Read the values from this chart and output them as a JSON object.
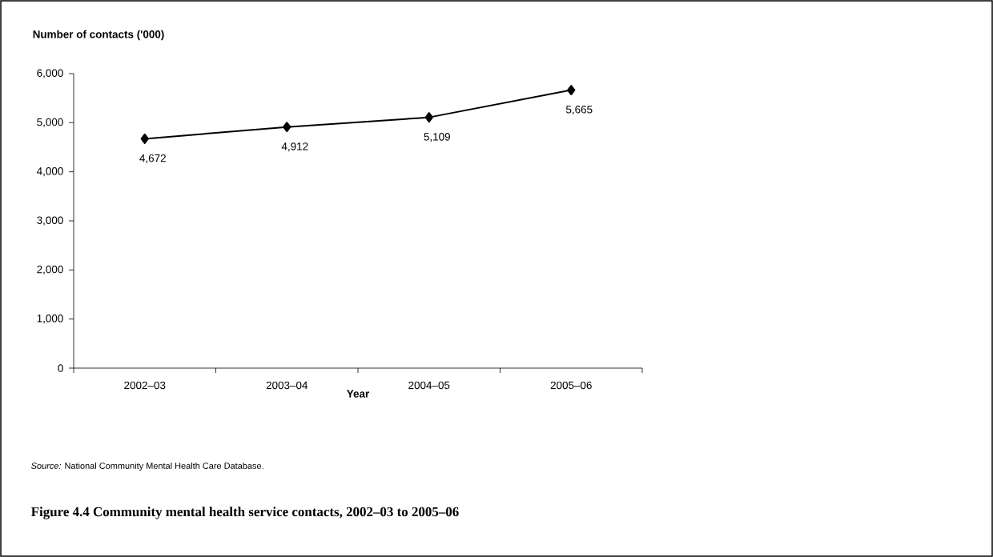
{
  "chart_data": {
    "type": "line",
    "title": "Figure 4.4 Community mental health service contacts, 2002–03 to 2005–06",
    "ylabel": "Number of contacts ('000)",
    "xlabel": "Year",
    "annotations": [
      "*Source:* National Community Mental Health Care Database."
    ],
    "categories": [
      "2002–03",
      "2003–04",
      "2004–05",
      "2005–06"
    ],
    "values": [
      4672,
      4912,
      5109,
      5665
    ],
    "color": "#000000",
    "ylim": [
      0,
      6000
    ],
    "yticks": [
      {
        "value": 0,
        "label": "0"
      },
      {
        "value": 1000,
        "label": "1,000"
      },
      {
        "value": 2000,
        "label": "2,000"
      },
      {
        "value": 3000,
        "label": "3,000"
      },
      {
        "value": 4000,
        "label": "4,000"
      },
      {
        "value": 5000,
        "label": "5,000"
      },
      {
        "value": 6000,
        "label": "6,000"
      }
    ],
    "value_labels": [
      "4,672",
      "4,912",
      "5,109",
      "5,665"
    ],
    "grid": false,
    "marker": "diamond",
    "line_style": "solid"
  }
}
